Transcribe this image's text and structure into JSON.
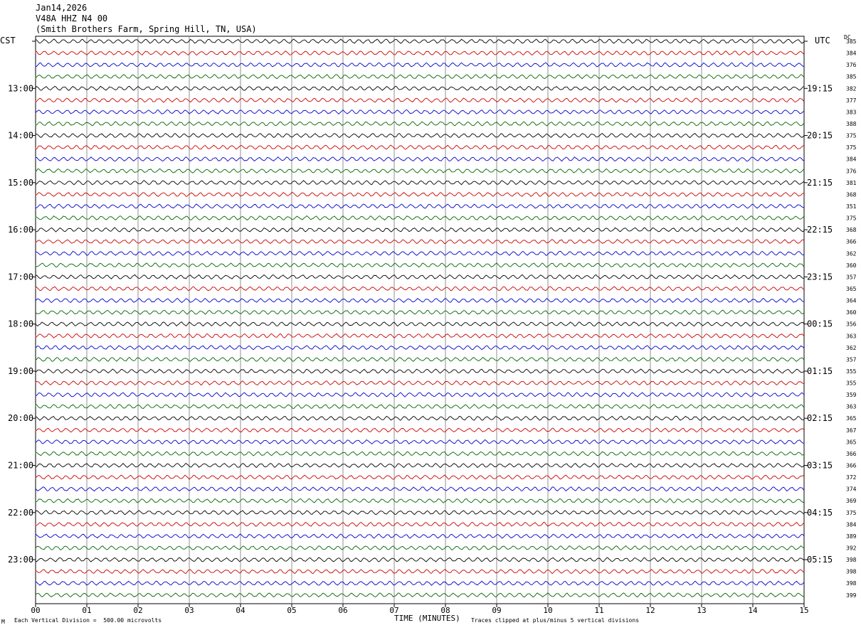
{
  "header": {
    "date": "Jan14,2026",
    "station": "V48A HHZ N4 00",
    "location": "(Smith Brothers Farm, Spring Hill, TN, USA)"
  },
  "axis": {
    "left_tz": "CST",
    "right_tz": "UTC",
    "dc_label": "DC",
    "xlabel": "TIME (MINUTES)",
    "scale_note": "Each Vertical Division =  500.00 microvolts",
    "clip_note": "Traces clipped at plus/minus 5 vertical divisions",
    "corner_mark": "M"
  },
  "chart_data": {
    "type": "line",
    "title": "",
    "xlabel": "TIME (MINUTES)",
    "ylabel": "",
    "xlim": [
      0,
      15
    ],
    "x_ticks": [
      "00",
      "01",
      "02",
      "03",
      "04",
      "05",
      "06",
      "07",
      "08",
      "09",
      "10",
      "11",
      "12",
      "13",
      "14",
      "15"
    ],
    "left_hour_labels": [
      "13:00",
      "14:00",
      "15:00",
      "16:00",
      "17:00",
      "18:00",
      "19:00",
      "20:00",
      "21:00",
      "22:00",
      "23:00"
    ],
    "right_hour_labels": [
      "19:15",
      "20:15",
      "21:15",
      "22:15",
      "23:15",
      "00:15",
      "01:15",
      "02:15",
      "03:15",
      "04:15",
      "05:15"
    ],
    "trace_colors": [
      "#000000",
      "#cc0000",
      "#0000cc",
      "#006600"
    ],
    "dc_offsets": [
      385,
      384,
      376,
      385,
      382,
      377,
      383,
      388,
      375,
      375,
      384,
      376,
      381,
      368,
      351,
      375,
      368,
      366,
      362,
      360,
      357,
      365,
      364,
      360,
      356,
      363,
      362,
      357,
      355,
      355,
      359,
      363,
      365,
      367,
      365,
      366,
      366,
      372,
      374,
      369,
      375,
      384,
      389,
      392,
      398,
      398,
      398,
      399
    ],
    "grid": true
  }
}
